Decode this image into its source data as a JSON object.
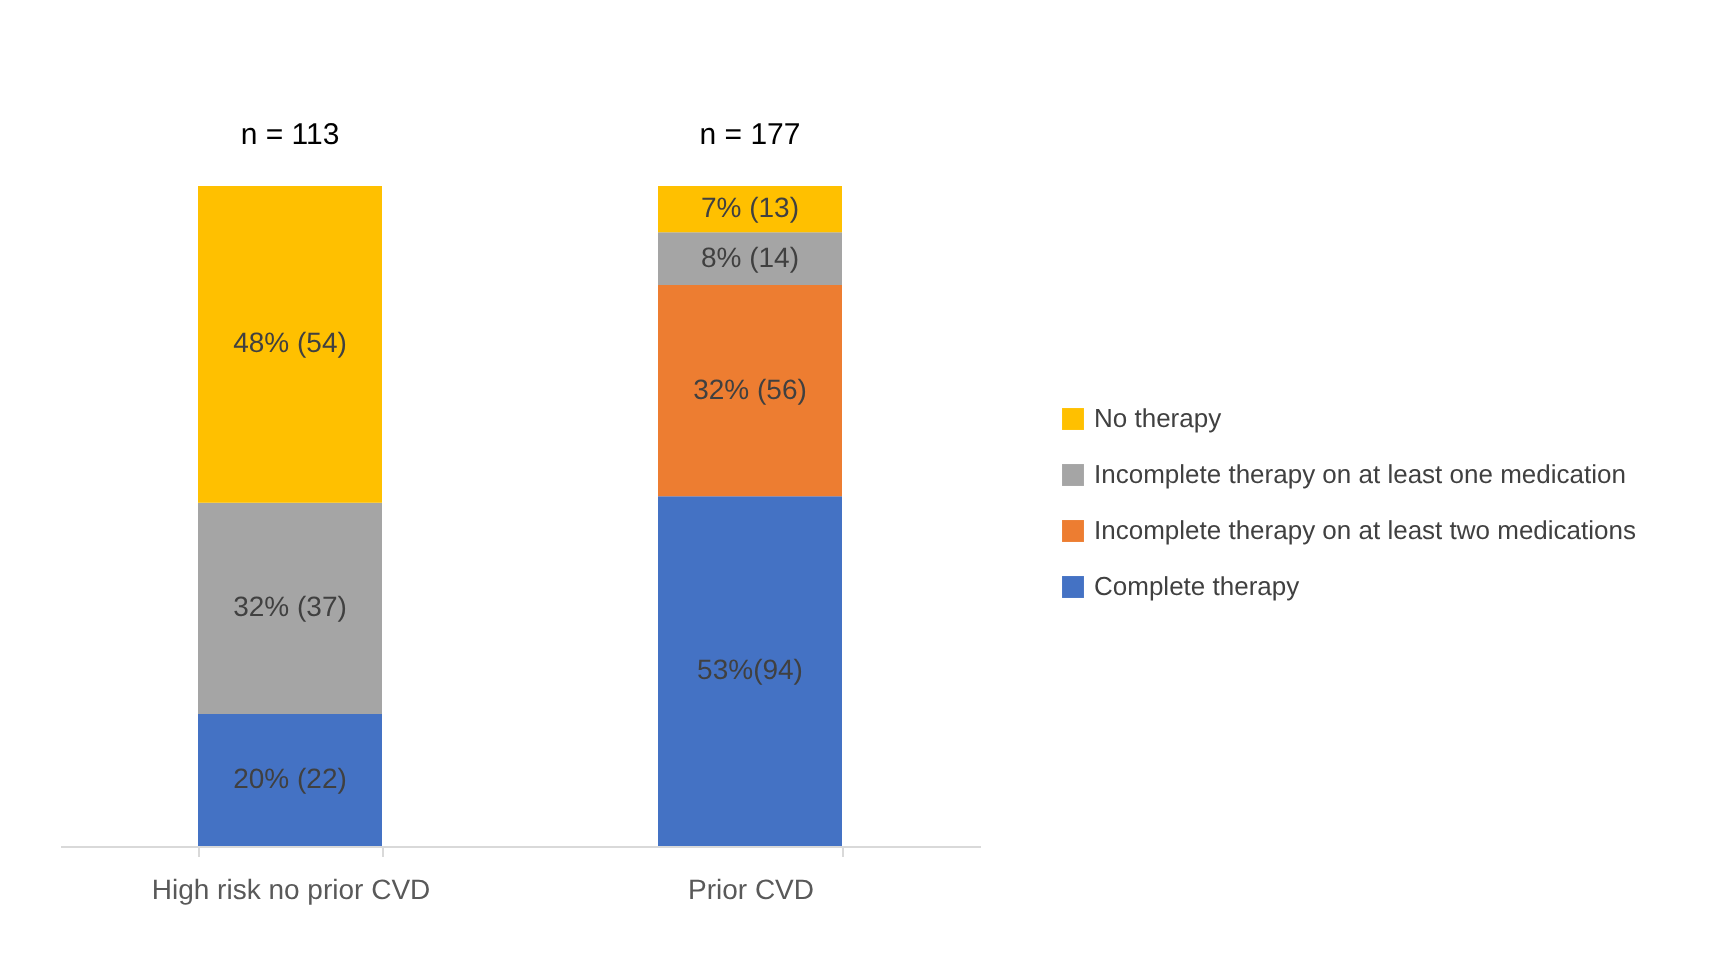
{
  "chart_data": {
    "type": "bar",
    "stacked": true,
    "legend": "right",
    "categories": [
      "High risk no prior CVD",
      "Prior CVD"
    ],
    "series": [
      {
        "name": "Complete therapy",
        "color": "#4472c4",
        "values": [
          20,
          53
        ],
        "value_labels": [
          "20% (22)",
          "53%(94)"
        ]
      },
      {
        "name": "Incomplete therapy on at least two medications",
        "color": "#ed7d31",
        "values": [
          null,
          32
        ],
        "value_labels": [
          null,
          "32% (56)"
        ]
      },
      {
        "name": "Incomplete therapy on at least one medication",
        "color": "#a5a5a5",
        "values": [
          32,
          8
        ],
        "value_labels": [
          "32% (37)",
          "8% (14)"
        ]
      },
      {
        "name": "No therapy",
        "color": "#ffc000",
        "values": [
          48,
          7
        ],
        "value_labels": [
          "48% (54)",
          "7% (13)"
        ]
      }
    ],
    "annotations": [
      {
        "text": "n = 113",
        "x": "High risk no prior CVD",
        "y": 100
      },
      {
        "text": "n = 177",
        "x": "Prior CVD",
        "y": 100
      }
    ]
  }
}
